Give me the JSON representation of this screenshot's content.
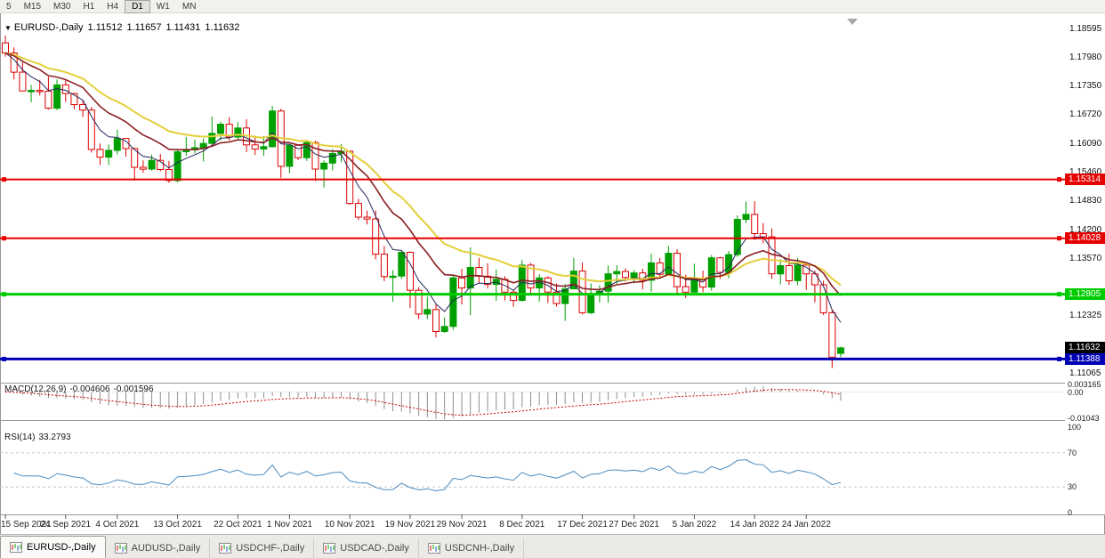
{
  "toolbar": {
    "timeframes": [
      "5",
      "M15",
      "M30",
      "H1",
      "H4",
      "D1",
      "W1",
      "MN"
    ],
    "active": "D1"
  },
  "header": {
    "symbol": "EURUSD-,Daily",
    "open": "1.11512",
    "high": "1.11657",
    "low": "1.11431",
    "close": "1.11632"
  },
  "indicators": {
    "macd": {
      "label": "MACD(12,26,9)",
      "value_main": "-0.004606",
      "value_signal": "-0.001596",
      "fast": 12,
      "slow": 26,
      "signal": 9,
      "axis": [
        "0.003165",
        "0.00",
        "-0.01043"
      ]
    },
    "rsi": {
      "label": "RSI(14)",
      "value": "33.2793",
      "period": 14,
      "levels": [
        70,
        30
      ],
      "axis": [
        "100",
        "70",
        "30",
        "0"
      ]
    }
  },
  "current_price": {
    "label": "1.11632",
    "value": 1.11632,
    "bg": "#000000"
  },
  "colors": {
    "bull": "#00a000",
    "bear": "#dd0000",
    "ma_fast": "#26265e",
    "ma_mid": "#e3cf3a",
    "ma_slow": "#8b1f24",
    "macd_histogram": "#8e8e8e",
    "macd_signal": "#cc0000",
    "rsi_line": "#4a8bc0",
    "axis_line": "#9c9a96"
  },
  "chart_data": {
    "type": "candlestick",
    "title": "EURUSD-,Daily",
    "ylim": [
      1.10864,
      1.18849
    ],
    "y_ticks": [
      "1.18595",
      "1.17980",
      "1.17350",
      "1.16720",
      "1.16090",
      "1.15460",
      "1.14830",
      "1.14200",
      "1.13570",
      "1.12325",
      "1.11065"
    ],
    "x_labels": [
      {
        "i": 0,
        "label": "15 Sep 2021"
      },
      {
        "i": 7,
        "label": "24 Sep 2021"
      },
      {
        "i": 13,
        "label": "4 Oct 2021"
      },
      {
        "i": 20,
        "label": "13 Oct 2021"
      },
      {
        "i": 27,
        "label": "22 Oct 2021"
      },
      {
        "i": 33,
        "label": "1 Nov 2021"
      },
      {
        "i": 40,
        "label": "10 Nov 2021"
      },
      {
        "i": 47,
        "label": "19 Nov 2021"
      },
      {
        "i": 53,
        "label": "29 Nov 2021"
      },
      {
        "i": 60,
        "label": "8 Dec 2021"
      },
      {
        "i": 67,
        "label": "17 Dec 2021"
      },
      {
        "i": 73,
        "label": "27 Dec 2021"
      },
      {
        "i": 80,
        "label": "5 Jan 2022"
      },
      {
        "i": 87,
        "label": "14 Jan 2022"
      },
      {
        "i": 93,
        "label": "24 Jan 2022"
      }
    ],
    "levels": [
      {
        "label": "1.15314",
        "value": 1.15314,
        "color": "#e60000",
        "width": 2
      },
      {
        "label": "1.14028",
        "value": 1.14028,
        "color": "#e60000",
        "width": 2
      },
      {
        "label": "1.12805",
        "value": 1.12805,
        "color": "#00cc00",
        "width": 3
      },
      {
        "label": "1.11388",
        "value": 1.11388,
        "color": "#0000b4",
        "width": 3
      }
    ],
    "moving_averages": [
      {
        "period": 5,
        "color": "#26265e",
        "width": 1
      },
      {
        "period": 20,
        "color": "#e3cf3a",
        "width": 2
      },
      {
        "period": 12,
        "color": "#8b1f24",
        "width": 1.6
      }
    ],
    "candles": [
      [
        1.183,
        1.1846,
        1.18,
        1.1808
      ],
      [
        1.1808,
        1.182,
        1.175,
        1.1766
      ],
      [
        1.1766,
        1.1788,
        1.1724,
        1.1725
      ],
      [
        1.1725,
        1.1738,
        1.17,
        1.1726
      ],
      [
        1.1726,
        1.1749,
        1.1715,
        1.1724
      ],
      [
        1.1724,
        1.1756,
        1.1684,
        1.1687
      ],
      [
        1.1687,
        1.175,
        1.1683,
        1.1738
      ],
      [
        1.1738,
        1.1747,
        1.1701,
        1.1719
      ],
      [
        1.1719,
        1.1721,
        1.1685,
        1.1695
      ],
      [
        1.1695,
        1.1705,
        1.1668,
        1.1683
      ],
      [
        1.1683,
        1.169,
        1.159,
        1.1597
      ],
      [
        1.1597,
        1.161,
        1.1563,
        1.158
      ],
      [
        1.158,
        1.1608,
        1.1563,
        1.1595
      ],
      [
        1.1595,
        1.164,
        1.1586,
        1.1621
      ],
      [
        1.1621,
        1.1622,
        1.1581,
        1.1599
      ],
      [
        1.1599,
        1.1601,
        1.1529,
        1.1558
      ],
      [
        1.1558,
        1.1573,
        1.1546,
        1.1554
      ],
      [
        1.1554,
        1.1586,
        1.1551,
        1.1573
      ],
      [
        1.1573,
        1.1587,
        1.1549,
        1.1553
      ],
      [
        1.1553,
        1.1572,
        1.1524,
        1.1529
      ],
      [
        1.1529,
        1.1597,
        1.1525,
        1.1592
      ],
      [
        1.1592,
        1.1624,
        1.1583,
        1.1596
      ],
      [
        1.1596,
        1.1618,
        1.1588,
        1.1601
      ],
      [
        1.1601,
        1.1621,
        1.1571,
        1.161
      ],
      [
        1.161,
        1.1669,
        1.1609,
        1.1632
      ],
      [
        1.1632,
        1.1658,
        1.1617,
        1.1652
      ],
      [
        1.1652,
        1.1667,
        1.1617,
        1.1624
      ],
      [
        1.1624,
        1.1657,
        1.162,
        1.1644
      ],
      [
        1.1644,
        1.1663,
        1.1591,
        1.1607
      ],
      [
        1.1607,
        1.1627,
        1.1585,
        1.1598
      ],
      [
        1.1598,
        1.1626,
        1.1583,
        1.1603
      ],
      [
        1.1603,
        1.1692,
        1.1601,
        1.1681
      ],
      [
        1.1681,
        1.1686,
        1.1535,
        1.156
      ],
      [
        1.156,
        1.1609,
        1.1545,
        1.1606
      ],
      [
        1.1606,
        1.1608,
        1.1574,
        1.1579
      ],
      [
        1.1579,
        1.1617,
        1.1572,
        1.1612
      ],
      [
        1.1612,
        1.1616,
        1.1528,
        1.1554
      ],
      [
        1.1554,
        1.1573,
        1.1514,
        1.1567
      ],
      [
        1.1567,
        1.1598,
        1.1551,
        1.1588
      ],
      [
        1.1588,
        1.1609,
        1.1569,
        1.1593
      ],
      [
        1.1593,
        1.1595,
        1.1476,
        1.1479
      ],
      [
        1.1479,
        1.1489,
        1.1443,
        1.1449
      ],
      [
        1.1449,
        1.1463,
        1.1433,
        1.1445
      ],
      [
        1.1445,
        1.1464,
        1.1357,
        1.1368
      ],
      [
        1.1368,
        1.1386,
        1.1309,
        1.1319
      ],
      [
        1.1319,
        1.1333,
        1.1264,
        1.132
      ],
      [
        1.132,
        1.1374,
        1.1314,
        1.1372
      ],
      [
        1.1372,
        1.1374,
        1.125,
        1.1289
      ],
      [
        1.1289,
        1.1296,
        1.1226,
        1.1237
      ],
      [
        1.1237,
        1.1275,
        1.1226,
        1.1247
      ],
      [
        1.1247,
        1.1258,
        1.1186,
        1.1199
      ],
      [
        1.1199,
        1.123,
        1.1196,
        1.121
      ],
      [
        1.121,
        1.1323,
        1.1203,
        1.1316
      ],
      [
        1.1316,
        1.1336,
        1.1258,
        1.1294
      ],
      [
        1.1294,
        1.1383,
        1.1235,
        1.1339
      ],
      [
        1.1339,
        1.136,
        1.1305,
        1.132
      ],
      [
        1.132,
        1.1348,
        1.1293,
        1.1302
      ],
      [
        1.1302,
        1.1334,
        1.1266,
        1.1313
      ],
      [
        1.1313,
        1.132,
        1.1267,
        1.1285
      ],
      [
        1.1285,
        1.1291,
        1.1253,
        1.1267
      ],
      [
        1.1267,
        1.1355,
        1.1264,
        1.1344
      ],
      [
        1.1344,
        1.1349,
        1.128,
        1.1294
      ],
      [
        1.1294,
        1.1324,
        1.1264,
        1.1316
      ],
      [
        1.1316,
        1.132,
        1.1261,
        1.1285
      ],
      [
        1.1285,
        1.1304,
        1.1253,
        1.126
      ],
      [
        1.126,
        1.1303,
        1.1222,
        1.1292
      ],
      [
        1.1292,
        1.136,
        1.1291,
        1.1331
      ],
      [
        1.1331,
        1.135,
        1.1236,
        1.124
      ],
      [
        1.124,
        1.1304,
        1.1237,
        1.128
      ],
      [
        1.128,
        1.13,
        1.1262,
        1.1287
      ],
      [
        1.1287,
        1.1343,
        1.1262,
        1.1325
      ],
      [
        1.1325,
        1.1344,
        1.1303,
        1.133
      ],
      [
        1.133,
        1.1337,
        1.1308,
        1.1317
      ],
      [
        1.1317,
        1.1333,
        1.1304,
        1.1327
      ],
      [
        1.1327,
        1.1336,
        1.1291,
        1.1311
      ],
      [
        1.1311,
        1.1369,
        1.1286,
        1.1349
      ],
      [
        1.1349,
        1.136,
        1.1315,
        1.1324
      ],
      [
        1.1324,
        1.1386,
        1.1321,
        1.137
      ],
      [
        1.137,
        1.1379,
        1.1279,
        1.1297
      ],
      [
        1.1297,
        1.1323,
        1.1272,
        1.1285
      ],
      [
        1.1285,
        1.1347,
        1.1284,
        1.1312
      ],
      [
        1.1312,
        1.1332,
        1.1285,
        1.1296
      ],
      [
        1.1296,
        1.1366,
        1.1288,
        1.136
      ],
      [
        1.136,
        1.1362,
        1.1314,
        1.1328
      ],
      [
        1.1328,
        1.1375,
        1.1315,
        1.1367
      ],
      [
        1.1367,
        1.1453,
        1.1362,
        1.1444
      ],
      [
        1.1444,
        1.1483,
        1.1436,
        1.1455
      ],
      [
        1.1455,
        1.1484,
        1.1399,
        1.1413
      ],
      [
        1.1413,
        1.1436,
        1.1392,
        1.1406
      ],
      [
        1.1406,
        1.1424,
        1.1314,
        1.1325
      ],
      [
        1.1325,
        1.1357,
        1.1302,
        1.1343
      ],
      [
        1.1343,
        1.1369,
        1.1301,
        1.131
      ],
      [
        1.131,
        1.136,
        1.13,
        1.1344
      ],
      [
        1.1344,
        1.1349,
        1.129,
        1.1325
      ],
      [
        1.1325,
        1.1332,
        1.1263,
        1.1301
      ],
      [
        1.1301,
        1.131,
        1.1235,
        1.124
      ],
      [
        1.124,
        1.1245,
        1.1119,
        1.1143
      ],
      [
        1.11512,
        1.11657,
        1.11431,
        1.11632
      ]
    ]
  },
  "tabs": {
    "items": [
      "EURUSD-,Daily",
      "AUDUSD-,Daily",
      "USDCHF-,Daily",
      "USDCAD-,Daily",
      "USDCNH-,Daily"
    ],
    "active": "EURUSD-,Daily"
  }
}
